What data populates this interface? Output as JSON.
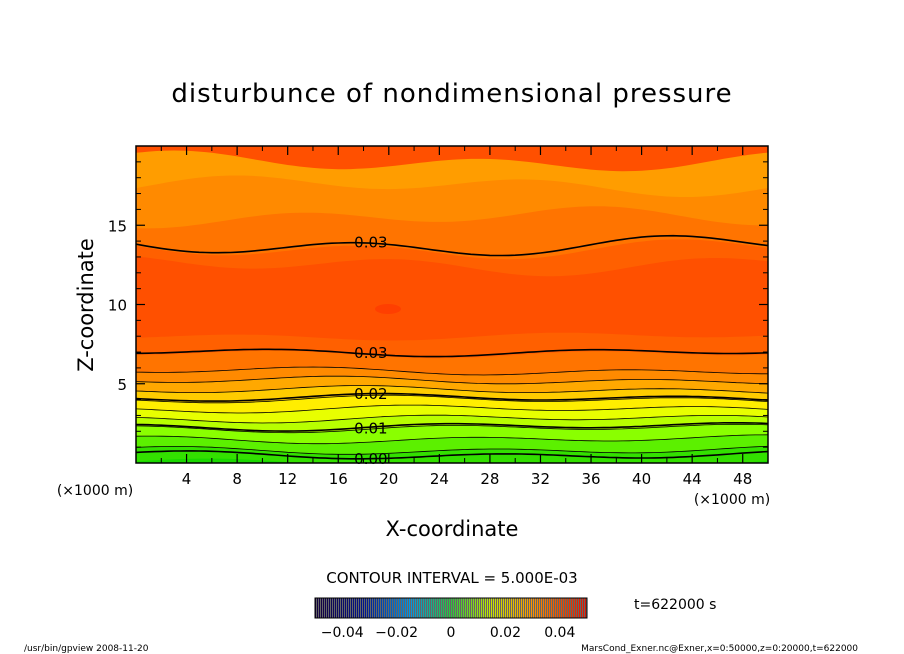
{
  "chart_data": {
    "type": "heatmap",
    "title": "disturbunce of nondimensional pressure",
    "xlabel": "X-coordinate",
    "ylabel": "Z-coordinate",
    "x_unit": "(×1000 m)",
    "y_unit": "(×1000 m)",
    "xlim": [
      0,
      50
    ],
    "ylim": [
      0,
      20
    ],
    "x_ticks": [
      "4",
      "8",
      "12",
      "16",
      "20",
      "24",
      "28",
      "32",
      "36",
      "40",
      "44",
      "48"
    ],
    "y_ticks": [
      "5",
      "10",
      "15"
    ],
    "contour_labels": [
      {
        "text": "0.03",
        "x": 17,
        "z": 13.7
      },
      {
        "text": "0.03",
        "x": 17,
        "z": 7.0
      },
      {
        "text": "0.02",
        "x": 17,
        "z": 4.1
      },
      {
        "text": "0.01",
        "x": 17,
        "z": 2.3
      },
      {
        "text": "0.00",
        "x": 17,
        "z": 0.5
      }
    ],
    "levels": [
      {
        "z": 19.0,
        "color": "#ff9d00"
      },
      {
        "z": 17.5,
        "color": "#ff8a00"
      },
      {
        "z": 15.5,
        "color": "#ff7400"
      },
      {
        "z": 13.5,
        "color": "#ff6000"
      },
      {
        "z": 12.5,
        "color": "#ff5000"
      },
      {
        "z": 8.0,
        "color": "#ff6000"
      },
      {
        "z": 6.9,
        "color": "#ff7400"
      },
      {
        "z": 5.8,
        "color": "#ff8a00"
      },
      {
        "z": 5.2,
        "color": "#ffa800"
      },
      {
        "z": 4.6,
        "color": "#ffcc00"
      },
      {
        "z": 4.0,
        "color": "#ffee00"
      },
      {
        "z": 3.4,
        "color": "#e8ff00"
      },
      {
        "z": 2.8,
        "color": "#b8ff00"
      },
      {
        "z": 2.2,
        "color": "#8aff00"
      },
      {
        "z": 1.5,
        "color": "#5cf000"
      },
      {
        "z": 0.8,
        "color": "#33e000"
      },
      {
        "z": 0.0,
        "color": "#1ad800"
      }
    ],
    "contour_interval_label": "CONTOUR INTERVAL = 5.000E-03",
    "colorbar": {
      "ticks": [
        "−0.04",
        "−0.02",
        "0",
        "0.02",
        "0.04"
      ],
      "range": [
        -0.05,
        0.05
      ]
    }
  },
  "time_label": "t=622000 s",
  "footer_left": "/usr/bin/gpview   2008-11-20",
  "footer_right": "MarsCond_Exner.nc@Exner,x=0:50000,z=0:20000,t=622000"
}
